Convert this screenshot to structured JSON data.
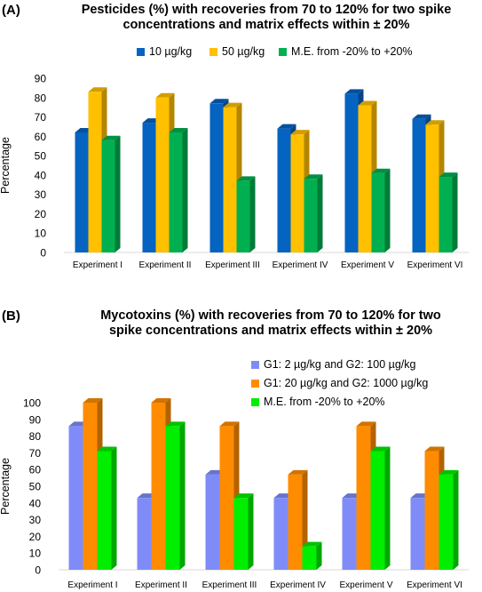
{
  "chart_data": [
    {
      "type": "bar",
      "panel": "(A)",
      "title_line1": "Pesticides (%) with recoveries from 70 to 120% for two spike",
      "title_line2": "concentrations and matrix effects within ± 20%",
      "xlabel": "",
      "ylabel": "Percentage",
      "ylim": [
        0,
        90
      ],
      "yticks": [
        0,
        10,
        20,
        30,
        40,
        50,
        60,
        70,
        80,
        90
      ],
      "grid": false,
      "legend_position": "top",
      "categories": [
        "Experiment I",
        "Experiment II",
        "Experiment III",
        "Experiment IV",
        "Experiment V",
        "Experiment VI"
      ],
      "series": [
        {
          "name": "10 µg/kg",
          "color": "#0563C1",
          "values": [
            62,
            67,
            77,
            64,
            82,
            69
          ]
        },
        {
          "name": "50 µg/kg",
          "color": "#FFC000",
          "values": [
            83,
            80,
            75,
            61,
            76,
            66
          ]
        },
        {
          "name": "M.E. from -20% to +20%",
          "color": "#00B050",
          "values": [
            58,
            62,
            37,
            38,
            41,
            39
          ]
        }
      ]
    },
    {
      "type": "bar",
      "panel": "(B)",
      "title_line1": "Mycotoxins (%) with recoveries from 70 to 120% for two",
      "title_line2": "spike concentrations and matrix effects within ± 20%",
      "xlabel": "",
      "ylabel": "Percentage",
      "ylim": [
        0,
        100
      ],
      "yticks": [
        0,
        10,
        20,
        30,
        40,
        50,
        60,
        70,
        80,
        90,
        100
      ],
      "grid": false,
      "legend_position": "top-right",
      "categories": [
        "Experiment I",
        "Experiment II",
        "Experiment III",
        "Experiment IV",
        "Experiment V",
        "Experiment VI"
      ],
      "series": [
        {
          "name": "G1: 2 µg/kg and G2: 100 µg/kg",
          "color": "#7F8CF7",
          "values": [
            86,
            43,
            57,
            43,
            43,
            43
          ]
        },
        {
          "name": "G1: 20 µg/kg and G2: 1000 µg/kg",
          "color": "#FF8C00",
          "values": [
            100,
            100,
            86,
            57,
            86,
            71
          ]
        },
        {
          "name": "M.E. from -20% to +20%",
          "color": "#00EE00",
          "values": [
            71,
            86,
            43,
            14,
            71,
            57
          ]
        }
      ]
    }
  ]
}
